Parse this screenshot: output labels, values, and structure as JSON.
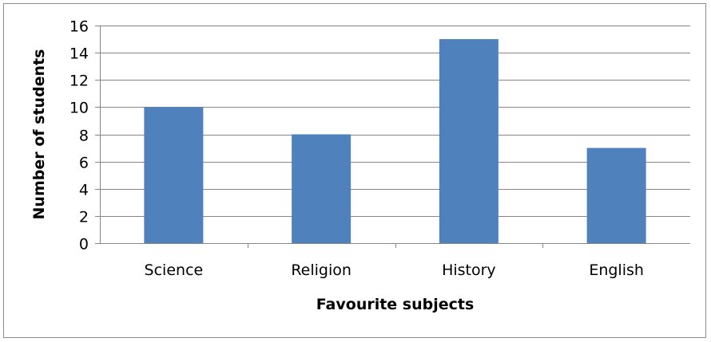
{
  "chart_data": {
    "type": "bar",
    "title": "",
    "xlabel": "Favourite subjects",
    "ylabel": "Number of students",
    "categories": [
      "Science",
      "Religion",
      "History",
      "English"
    ],
    "values": [
      10,
      8,
      15,
      7
    ],
    "ylim": [
      0,
      16
    ],
    "yticks": [
      0,
      2,
      4,
      6,
      8,
      10,
      12,
      14,
      16
    ],
    "grid": true,
    "legend": "none",
    "bar_color": "#4f81bd",
    "grid_color": "#868686"
  }
}
